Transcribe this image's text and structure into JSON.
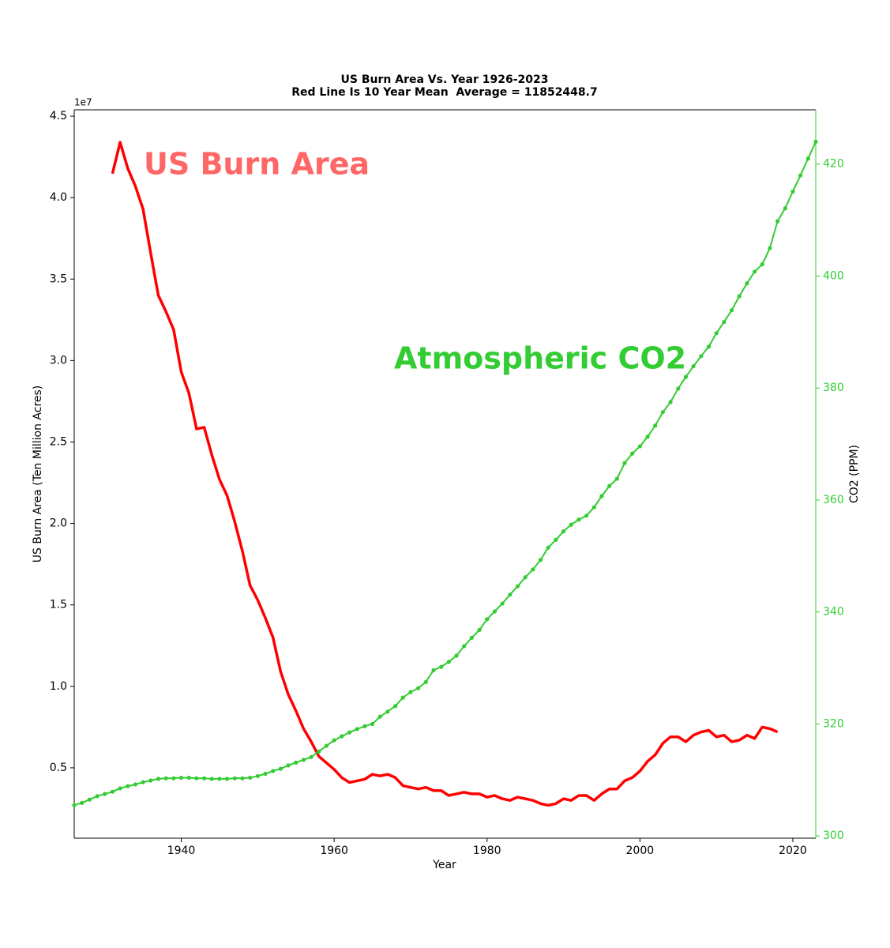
{
  "chart_data": {
    "type": "line",
    "title": "US Burn Area Vs. Year 1926-2023",
    "subtitle": "Red Line Is 10 Year Mean  Average = 11852448.7",
    "xlabel": "Year",
    "ylabel": "US Burn Area (Ten Million Acres)",
    "y2label": "CO2 (PPM)",
    "y_offset_label": "1e7",
    "xlim": [
      1926,
      2023
    ],
    "xticks": [
      1940,
      1960,
      1980,
      2000,
      2020
    ],
    "ylim": [
      680000,
      45390000
    ],
    "yticks": [
      {
        "value": 5000000,
        "label": "0.5"
      },
      {
        "value": 10000000,
        "label": "1.0"
      },
      {
        "value": 15000000,
        "label": "1.5"
      },
      {
        "value": 20000000,
        "label": "2.0"
      },
      {
        "value": 25000000,
        "label": "2.5"
      },
      {
        "value": 30000000,
        "label": "3.0"
      },
      {
        "value": 35000000,
        "label": "3.5"
      },
      {
        "value": 40000000,
        "label": "4.0"
      },
      {
        "value": 45000000,
        "label": "4.5"
      }
    ],
    "y2lim": [
      299.6,
      429.7
    ],
    "y2ticks": [
      300,
      320,
      340,
      360,
      380,
      400,
      420
    ],
    "y2color": "#33cc33",
    "grid": false,
    "series": [
      {
        "name": "US Burn Area",
        "color": "#ff0000",
        "label_color": "#ff6666",
        "x": [
          1931,
          1932,
          1933,
          1934,
          1935,
          1936,
          1937,
          1938,
          1939,
          1940,
          1941,
          1942,
          1943,
          1944,
          1945,
          1946,
          1947,
          1948,
          1949,
          1950,
          1951,
          1952,
          1953,
          1954,
          1955,
          1956,
          1957,
          1958,
          1959,
          1960,
          1961,
          1962,
          1963,
          1964,
          1965,
          1966,
          1967,
          1968,
          1969,
          1970,
          1971,
          1972,
          1973,
          1974,
          1975,
          1976,
          1977,
          1978,
          1979,
          1980,
          1981,
          1982,
          1983,
          1984,
          1985,
          1986,
          1987,
          1988,
          1989,
          1990,
          1991,
          1992,
          1993,
          1994,
          1995,
          1996,
          1997,
          1998,
          1999,
          2000,
          2001,
          2002,
          2003,
          2004,
          2005,
          2006,
          2007,
          2008,
          2009,
          2010,
          2011,
          2012,
          2013,
          2014,
          2015,
          2016,
          2017,
          2018
        ],
        "values": [
          41470000,
          43400000,
          41800000,
          40700000,
          39300000,
          36600000,
          34000000,
          33000000,
          31900000,
          29300000,
          28000000,
          25800000,
          25900000,
          24200000,
          22700000,
          21700000,
          20100000,
          18300000,
          16200000,
          15300000,
          14200000,
          13000000,
          10900000,
          9500000,
          8500000,
          7400000,
          6600000,
          5700000,
          5300000,
          4900000,
          4400000,
          4100000,
          4200000,
          4300000,
          4600000,
          4500000,
          4600000,
          4400000,
          3900000,
          3800000,
          3700000,
          3800000,
          3600000,
          3600000,
          3300000,
          3400000,
          3500000,
          3400000,
          3400000,
          3200000,
          3300000,
          3100000,
          3000000,
          3200000,
          3100000,
          3000000,
          2800000,
          2700000,
          2800000,
          3100000,
          3000000,
          3300000,
          3300000,
          3000000,
          3400000,
          3700000,
          3700000,
          4200000,
          4400000,
          4800000,
          5400000,
          5800000,
          6500000,
          6900000,
          6900000,
          6600000,
          7000000,
          7200000,
          7300000,
          6900000,
          7000000,
          6600000,
          6700000,
          7000000,
          6800000,
          7500000,
          7400000,
          7200000
        ]
      },
      {
        "name": "Atmospheric CO2",
        "color": "#33cc33",
        "label_color": "#33cc33",
        "axis": "y2",
        "markers": true,
        "x": [
          1926,
          1927,
          1928,
          1929,
          1930,
          1931,
          1932,
          1933,
          1934,
          1935,
          1936,
          1937,
          1938,
          1939,
          1940,
          1941,
          1942,
          1943,
          1944,
          1945,
          1946,
          1947,
          1948,
          1949,
          1950,
          1951,
          1952,
          1953,
          1954,
          1955,
          1956,
          1957,
          1958,
          1959,
          1960,
          1961,
          1962,
          1963,
          1964,
          1965,
          1966,
          1967,
          1968,
          1969,
          1970,
          1971,
          1972,
          1973,
          1974,
          1975,
          1976,
          1977,
          1978,
          1979,
          1980,
          1981,
          1982,
          1983,
          1984,
          1985,
          1986,
          1987,
          1988,
          1989,
          1990,
          1991,
          1992,
          1993,
          1994,
          1995,
          1996,
          1997,
          1998,
          1999,
          2000,
          2001,
          2002,
          2003,
          2004,
          2005,
          2006,
          2007,
          2008,
          2009,
          2010,
          2011,
          2012,
          2013,
          2014,
          2015,
          2016,
          2017,
          2018,
          2019,
          2020,
          2021,
          2022,
          2023
        ],
        "values": [
          305.5,
          305.9,
          306.5,
          307.1,
          307.5,
          307.9,
          308.5,
          308.9,
          309.2,
          309.6,
          309.9,
          310.2,
          310.3,
          310.3,
          310.4,
          310.4,
          310.3,
          310.3,
          310.2,
          310.2,
          310.2,
          310.3,
          310.3,
          310.4,
          310.7,
          311.1,
          311.6,
          312.0,
          312.6,
          313.1,
          313.6,
          314.1,
          315.1,
          316.1,
          317.1,
          317.8,
          318.5,
          319.1,
          319.6,
          320.0,
          321.3,
          322.2,
          323.2,
          324.7,
          325.7,
          326.4,
          327.5,
          329.6,
          330.2,
          331.1,
          332.2,
          333.9,
          335.4,
          336.8,
          338.7,
          340.1,
          341.5,
          343.1,
          344.6,
          346.2,
          347.6,
          349.3,
          351.5,
          352.9,
          354.4,
          355.6,
          356.5,
          357.2,
          358.7,
          360.7,
          362.5,
          363.8,
          366.6,
          368.3,
          369.6,
          371.3,
          373.3,
          375.7,
          377.5,
          379.9,
          382.0,
          383.9,
          385.7,
          387.4,
          389.8,
          391.8,
          393.9,
          396.4,
          398.7,
          400.8,
          402.1,
          405.0,
          409.8,
          412.1,
          415.1,
          418.0,
          421.0,
          424.0
        ]
      }
    ]
  }
}
